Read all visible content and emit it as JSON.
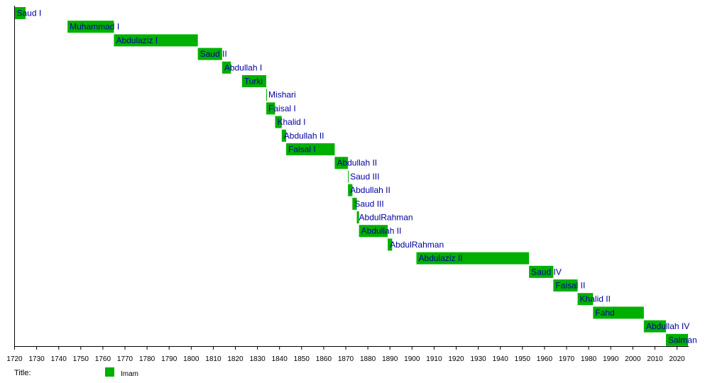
{
  "chart_data": {
    "type": "timeline",
    "title": "",
    "xlim": [
      1720,
      2025
    ],
    "x_ticks": [
      "1720",
      "1730",
      "1740",
      "1750",
      "1760",
      "1770",
      "1780",
      "1790",
      "1800",
      "1810",
      "1820",
      "1830",
      "1840",
      "1850",
      "1860",
      "1870",
      "1880",
      "1890",
      "1900",
      "1910",
      "1920",
      "1930",
      "1940",
      "1950",
      "1960",
      "1970",
      "1980",
      "1990",
      "2000",
      "2010",
      "2020"
    ],
    "legend": {
      "heading": "Title:",
      "entries": [
        {
          "name": "Imam",
          "color": "#00b000"
        }
      ],
      "placement": "bottom-left"
    },
    "bar_color": "#00b000",
    "label_color": "#0000a0",
    "bars": [
      {
        "label": "Saud I",
        "start": 1720,
        "end": 1725
      },
      {
        "label": "Muhammad I",
        "start": 1744,
        "end": 1765
      },
      {
        "label": "Abdulaziz I",
        "start": 1765,
        "end": 1803
      },
      {
        "label": "Saud II",
        "start": 1803,
        "end": 1814
      },
      {
        "label": "Abdullah I",
        "start": 1814,
        "end": 1818
      },
      {
        "label": "Turki",
        "start": 1823,
        "end": 1834
      },
      {
        "label": "Mishari",
        "start": 1834,
        "end": 1834.3
      },
      {
        "label": "Faisal I",
        "start": 1834,
        "end": 1838
      },
      {
        "label": "Khalid I",
        "start": 1838,
        "end": 1841
      },
      {
        "label": "Abdullah II",
        "start": 1841,
        "end": 1843
      },
      {
        "label": "Faisal I",
        "start": 1843,
        "end": 1865
      },
      {
        "label": "Abdullah II",
        "start": 1865,
        "end": 1871
      },
      {
        "label": "Saud III",
        "start": 1871,
        "end": 1871.3
      },
      {
        "label": "Abdullah II",
        "start": 1871,
        "end": 1873
      },
      {
        "label": "Saud III",
        "start": 1873,
        "end": 1875
      },
      {
        "label": "AbdulRahman",
        "start": 1875,
        "end": 1876
      },
      {
        "label": "Abdullah II",
        "start": 1876,
        "end": 1889
      },
      {
        "label": "AbdulRahman",
        "start": 1889,
        "end": 1891
      },
      {
        "label": "Abdulaziz II",
        "start": 1902,
        "end": 1953
      },
      {
        "label": "Saud IV",
        "start": 1953,
        "end": 1964
      },
      {
        "label": "Faisal II",
        "start": 1964,
        "end": 1975
      },
      {
        "label": "Khalid II",
        "start": 1975,
        "end": 1982
      },
      {
        "label": "Fahd",
        "start": 1982,
        "end": 2005
      },
      {
        "label": "Abdullah IV",
        "start": 2005,
        "end": 2015
      },
      {
        "label": "Salman",
        "start": 2015,
        "end": 2025
      }
    ]
  }
}
